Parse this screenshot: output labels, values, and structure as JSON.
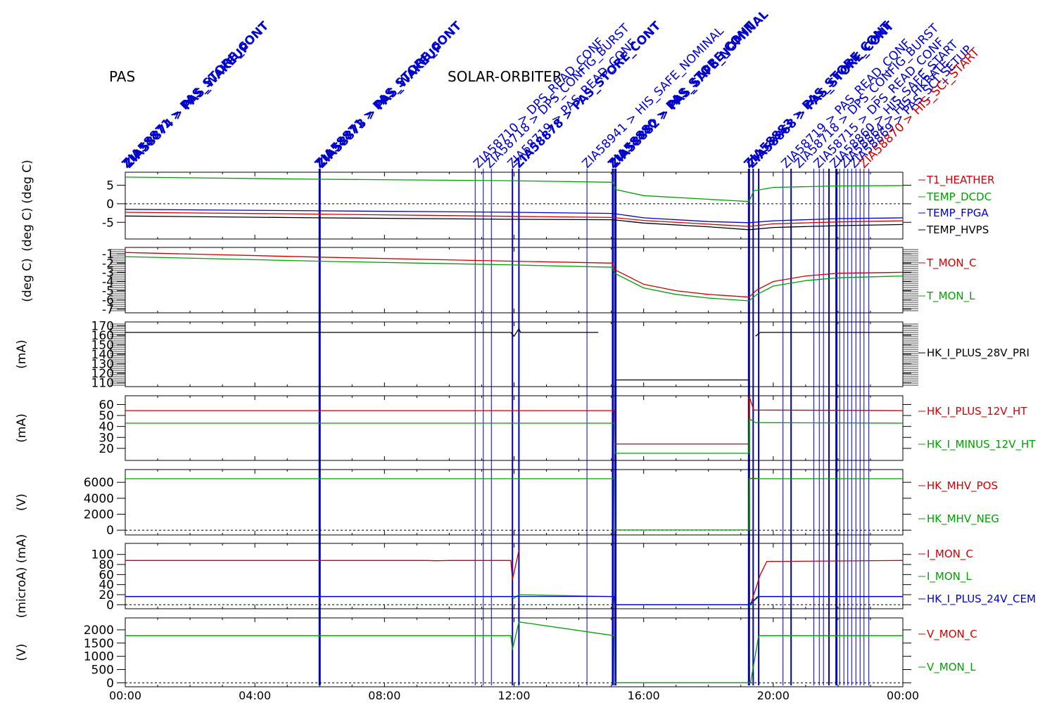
{
  "header": {
    "instrument": "PAS",
    "mission": "SOLAR-ORBITER"
  },
  "x_axis": {
    "tick_labels": [
      "00:00",
      "04:00",
      "08:00",
      "12:00",
      "16:00",
      "20:00",
      "00:00"
    ],
    "range_hours": [
      0,
      24
    ]
  },
  "colors": {
    "red": "#d00000",
    "green": "#00a000",
    "blue": "#0000cc",
    "black": "#000000"
  },
  "event_labels": [
    {
      "text": "ZIA58871 > PAS_STORE_CONT",
      "hour": 0.05,
      "color": "#0000cc",
      "bold": true
    },
    {
      "text": "ZIA58874 > PAS_WAKEUP",
      "hour": 0.12,
      "color": "#0000cc",
      "bold": true
    },
    {
      "text": "ZIA58871 > PAS_STORE_CONT",
      "hour": 6.0,
      "color": "#0000cc",
      "bold": true
    },
    {
      "text": "ZIA58873 > PAS_WAKEUP",
      "hour": 6.07,
      "color": "#0000cc",
      "bold": true
    },
    {
      "text": "ZIA58710 > DPS_READ_CONF",
      "hour": 10.9,
      "color": "#0000cc",
      "bold": false
    },
    {
      "text": "ZIA58718 > DPS_CONFIG_BURST",
      "hour": 11.25,
      "color": "#0000cc",
      "bold": false
    },
    {
      "text": "ZIA58719 > PAS_READ_CONF",
      "hour": 11.95,
      "color": "#0000cc",
      "bold": false
    },
    {
      "text": "ZIA58878 > PAS_STORE_CONT",
      "hour": 12.15,
      "color": "#0000cc",
      "bold": true
    },
    {
      "text": "ZIA58941 > HIS_SAFE_NOMINAL",
      "hour": 14.25,
      "color": "#0000cc",
      "bold": false
    },
    {
      "text": "ZIA58880 > PAS_STORE_CONT",
      "hour": 15.05,
      "color": "#0000cc",
      "bold": true
    },
    {
      "text": "ZIA58882 > PAS_SAFE_NOMINAL",
      "hour": 15.12,
      "color": "#0000cc",
      "bold": true
    },
    {
      "text": "ZIA58883 > PAS_STORE_CONT",
      "hour": 19.25,
      "color": "#0000cc",
      "bold": true
    },
    {
      "text": "ZIA58868 > PAS_STORE_CONT",
      "hour": 19.35,
      "color": "#0000cc",
      "bold": true
    },
    {
      "text": "ZIA58719 > PAS_READ_CONF",
      "hour": 20.4,
      "color": "#0000cc",
      "bold": false
    },
    {
      "text": "ZIA58718 > DPS_CONFIG_BURST",
      "hour": 20.8,
      "color": "#0000cc",
      "bold": false
    },
    {
      "text": "ZIA58715 > DPS_READ_CONF",
      "hour": 21.4,
      "color": "#0000cc",
      "bold": false
    },
    {
      "text": "ZIA58860 > HIS_SAFE_START",
      "hour": 21.9,
      "color": "#0000cc",
      "bold": false
    },
    {
      "text": "ZIA58864 > HIS_HKRATE",
      "hour": 22.2,
      "color": "#0000cc",
      "bold": false
    },
    {
      "text": "ZIA58869 > PAS_SCI_SETUP",
      "hour": 22.5,
      "color": "#0000cc",
      "bold": false
    },
    {
      "text": "ZIA58870 > HIS_SCI_START",
      "hour": 22.8,
      "color": "#d00000",
      "bold": false
    }
  ],
  "event_lines": [
    {
      "hour": 6.0,
      "width": 3
    },
    {
      "hour": 10.8,
      "width": 1
    },
    {
      "hour": 11.05,
      "width": 1
    },
    {
      "hour": 11.3,
      "width": 1
    },
    {
      "hour": 11.95,
      "width": 2
    },
    {
      "hour": 12.15,
      "width": 2
    },
    {
      "hour": 14.25,
      "width": 1
    },
    {
      "hour": 15.05,
      "width": 3
    },
    {
      "hour": 15.13,
      "width": 3
    },
    {
      "hour": 19.25,
      "width": 3
    },
    {
      "hour": 19.38,
      "width": 2
    },
    {
      "hour": 19.55,
      "width": 2
    },
    {
      "hour": 20.3,
      "width": 1
    },
    {
      "hour": 20.55,
      "width": 2
    },
    {
      "hour": 21.25,
      "width": 1
    },
    {
      "hour": 21.42,
      "width": 1
    },
    {
      "hour": 21.55,
      "width": 1
    },
    {
      "hour": 21.72,
      "width": 2
    },
    {
      "hour": 21.95,
      "width": 3
    },
    {
      "hour": 22.05,
      "width": 1
    },
    {
      "hour": 22.18,
      "width": 1
    },
    {
      "hour": 22.3,
      "width": 1
    },
    {
      "hour": 22.42,
      "width": 1
    },
    {
      "hour": 22.55,
      "width": 1
    },
    {
      "hour": 22.68,
      "width": 1
    },
    {
      "hour": 22.8,
      "width": 1
    },
    {
      "hour": 22.95,
      "width": 1
    }
  ],
  "chart_data": [
    {
      "type": "line",
      "ylabel": "(deg C) (deg C)",
      "ylim": [
        -9.5,
        8.5
      ],
      "yticks": [
        5,
        0,
        -5
      ],
      "zero_line": true,
      "series": [
        {
          "name": "T1_HEATHER",
          "color": "#d00000",
          "x": [],
          "y": []
        },
        {
          "name": "TEMP_DCDC",
          "color": "#00a000",
          "x": [
            0,
            6,
            12,
            15.05,
            15.15,
            16,
            18,
            19.25,
            19.4,
            20,
            22,
            24
          ],
          "y": [
            7.2,
            6.6,
            6.2,
            5.8,
            3.8,
            2.2,
            1.2,
            0.6,
            3.5,
            4.4,
            4.8,
            4.9
          ]
        },
        {
          "name": "TEMP_FPGA",
          "color": "#0000cc",
          "x": [
            0,
            6,
            12,
            15.05,
            16,
            18,
            19.25,
            20,
            22,
            24
          ],
          "y": [
            -1.5,
            -1.9,
            -2.3,
            -2.6,
            -3.8,
            -4.8,
            -5.1,
            -4.6,
            -4.0,
            -3.8
          ]
        },
        {
          "name": "TEMP_HVPS",
          "color": "#000000",
          "x": [
            0,
            6,
            12,
            15.05,
            16,
            18,
            19.25,
            20,
            22,
            24
          ],
          "y": [
            -3.3,
            -3.8,
            -4.2,
            -4.3,
            -5.2,
            -6.2,
            -7.0,
            -6.4,
            -5.9,
            -5.6
          ]
        },
        {
          "name": "",
          "color": "#d00000",
          "x": [
            0,
            6,
            12,
            15.05,
            16,
            18,
            19.25,
            20,
            22,
            24
          ],
          "y": [
            -2.3,
            -2.8,
            -3.4,
            -3.7,
            -4.5,
            -5.5,
            -6.1,
            -5.4,
            -4.9,
            -4.6
          ]
        }
      ]
    },
    {
      "type": "line",
      "ylabel": "(deg C)",
      "ylim": [
        -7.4,
        -0.3
      ],
      "yticks": [
        -1,
        -2,
        -3,
        -4,
        -5,
        -6,
        -7
      ],
      "zero_line": false,
      "series": [
        {
          "name": "T_MON_C",
          "color": "#d00000",
          "x": [
            0,
            6,
            12,
            15.05,
            15.1,
            16,
            17,
            18,
            19.25,
            19.5,
            20,
            21,
            22,
            24
          ],
          "y": [
            -0.85,
            -1.35,
            -1.8,
            -2.0,
            -2.7,
            -4.3,
            -5.0,
            -5.4,
            -5.7,
            -4.9,
            -4.0,
            -3.4,
            -3.1,
            -3.0
          ]
        },
        {
          "name": "T_MON_L",
          "color": "#00a000",
          "x": [
            0,
            6,
            12,
            15.05,
            15.1,
            16,
            17,
            18,
            19.25,
            19.5,
            20,
            21,
            22,
            24
          ],
          "y": [
            -1.3,
            -1.8,
            -2.2,
            -2.45,
            -3.1,
            -4.7,
            -5.4,
            -5.8,
            -6.1,
            -5.4,
            -4.5,
            -3.9,
            -3.6,
            -3.4
          ]
        }
      ]
    },
    {
      "type": "line",
      "ylabel": "(mA)",
      "ylim": [
        106,
        174
      ],
      "yticks": [
        170,
        160,
        150,
        140,
        130,
        120,
        110
      ],
      "zero_line": false,
      "series": [
        {
          "name": "HK_I_PLUS_28V_PRI",
          "color": "#000000",
          "x": [
            0,
            11.9,
            12.0,
            12.15,
            12.2,
            14.6,
            15.15,
            15.16,
            19.25,
            19.3,
            19.45,
            19.6,
            24
          ],
          "y": [
            163,
            163,
            159,
            167,
            163,
            163,
            null,
            113,
            113,
            null,
            159,
            163,
            163
          ]
        }
      ]
    },
    {
      "type": "line",
      "ylabel": "(mA)",
      "ylim": [
        9,
        68
      ],
      "yticks": [
        60,
        50,
        40,
        30,
        20
      ],
      "zero_line": false,
      "series": [
        {
          "name": "HK_I_PLUS_12V_HT",
          "color": "#d00000",
          "x": [
            0,
            15.1,
            15.11,
            19.25,
            19.26,
            19.4,
            24
          ],
          "y": [
            54.5,
            54.5,
            24,
            24,
            67,
            55,
            54.5
          ]
        },
        {
          "name": "HK_I_MINUS_12V_HT",
          "color": "#00a000",
          "x": [
            0,
            15.1,
            15.11,
            19.25,
            19.26,
            19.45,
            24
          ],
          "y": [
            43,
            43,
            15.5,
            15.5,
            47,
            43.5,
            43
          ]
        }
      ]
    },
    {
      "type": "line",
      "ylabel": "(V)",
      "ylim": [
        -600,
        7600
      ],
      "yticks": [
        6000,
        4000,
        2000,
        0
      ],
      "zero_line": true,
      "series": [
        {
          "name": "HK_MHV_POS",
          "color": "#d00000",
          "x": [
            19.3,
            19.5
          ],
          "y": [
            6500,
            6500
          ]
        },
        {
          "name": "HK_MHV_NEG",
          "color": "#00a000",
          "x": [
            0,
            15.1,
            15.11,
            19.25,
            19.26,
            24
          ],
          "y": [
            6450,
            6450,
            30,
            30,
            6450,
            6450
          ]
        }
      ]
    },
    {
      "type": "line",
      "ylabel": "(microA) (mA)",
      "ylim": [
        -8,
        122
      ],
      "yticks": [
        100,
        80,
        60,
        40,
        20,
        0
      ],
      "zero_line": true,
      "series": [
        {
          "name": "I_MON_C",
          "color": "#d00000",
          "x": [
            0,
            9.3,
            9.6,
            10.0,
            11.9,
            11.95,
            12.15,
            null,
            19.3,
            19.6,
            19.8,
            24
          ],
          "y": [
            88,
            88,
            87.5,
            88,
            88,
            50,
            108,
            null,
            0,
            60,
            86,
            88
          ]
        },
        {
          "name": "I_MON_L",
          "color": "#00a000",
          "x": [
            0,
            11.9,
            12.0,
            12.15,
            15.1,
            15.11,
            19.25,
            19.3,
            19.5,
            24
          ],
          "y": [
            16,
            16,
            13,
            20,
            16,
            0,
            0,
            0,
            16,
            16
          ]
        },
        {
          "name": "HK_I_PLUS_24V_CEM",
          "color": "#0000cc",
          "x": [
            0,
            15.1,
            15.11,
            19.25,
            19.4,
            19.55,
            24
          ],
          "y": [
            16.5,
            16.5,
            0,
            0,
            8,
            16.5,
            16.5
          ]
        }
      ]
    },
    {
      "type": "line",
      "ylabel": "(V)",
      "ylim": [
        -150,
        2450
      ],
      "yticks": [
        2000,
        1500,
        1000,
        500,
        0
      ],
      "zero_line": true,
      "series": [
        {
          "name": "V_MON_C",
          "color": "#d00000",
          "x": [],
          "y": []
        },
        {
          "name": "V_MON_L",
          "color": "#00a000",
          "x": [
            0,
            11.9,
            11.95,
            12.15,
            15.1,
            15.11,
            19.25,
            19.3,
            19.55,
            24
          ],
          "y": [
            1780,
            1780,
            1250,
            2300,
            1780,
            0,
            0,
            0,
            1780,
            1780
          ]
        }
      ]
    }
  ]
}
